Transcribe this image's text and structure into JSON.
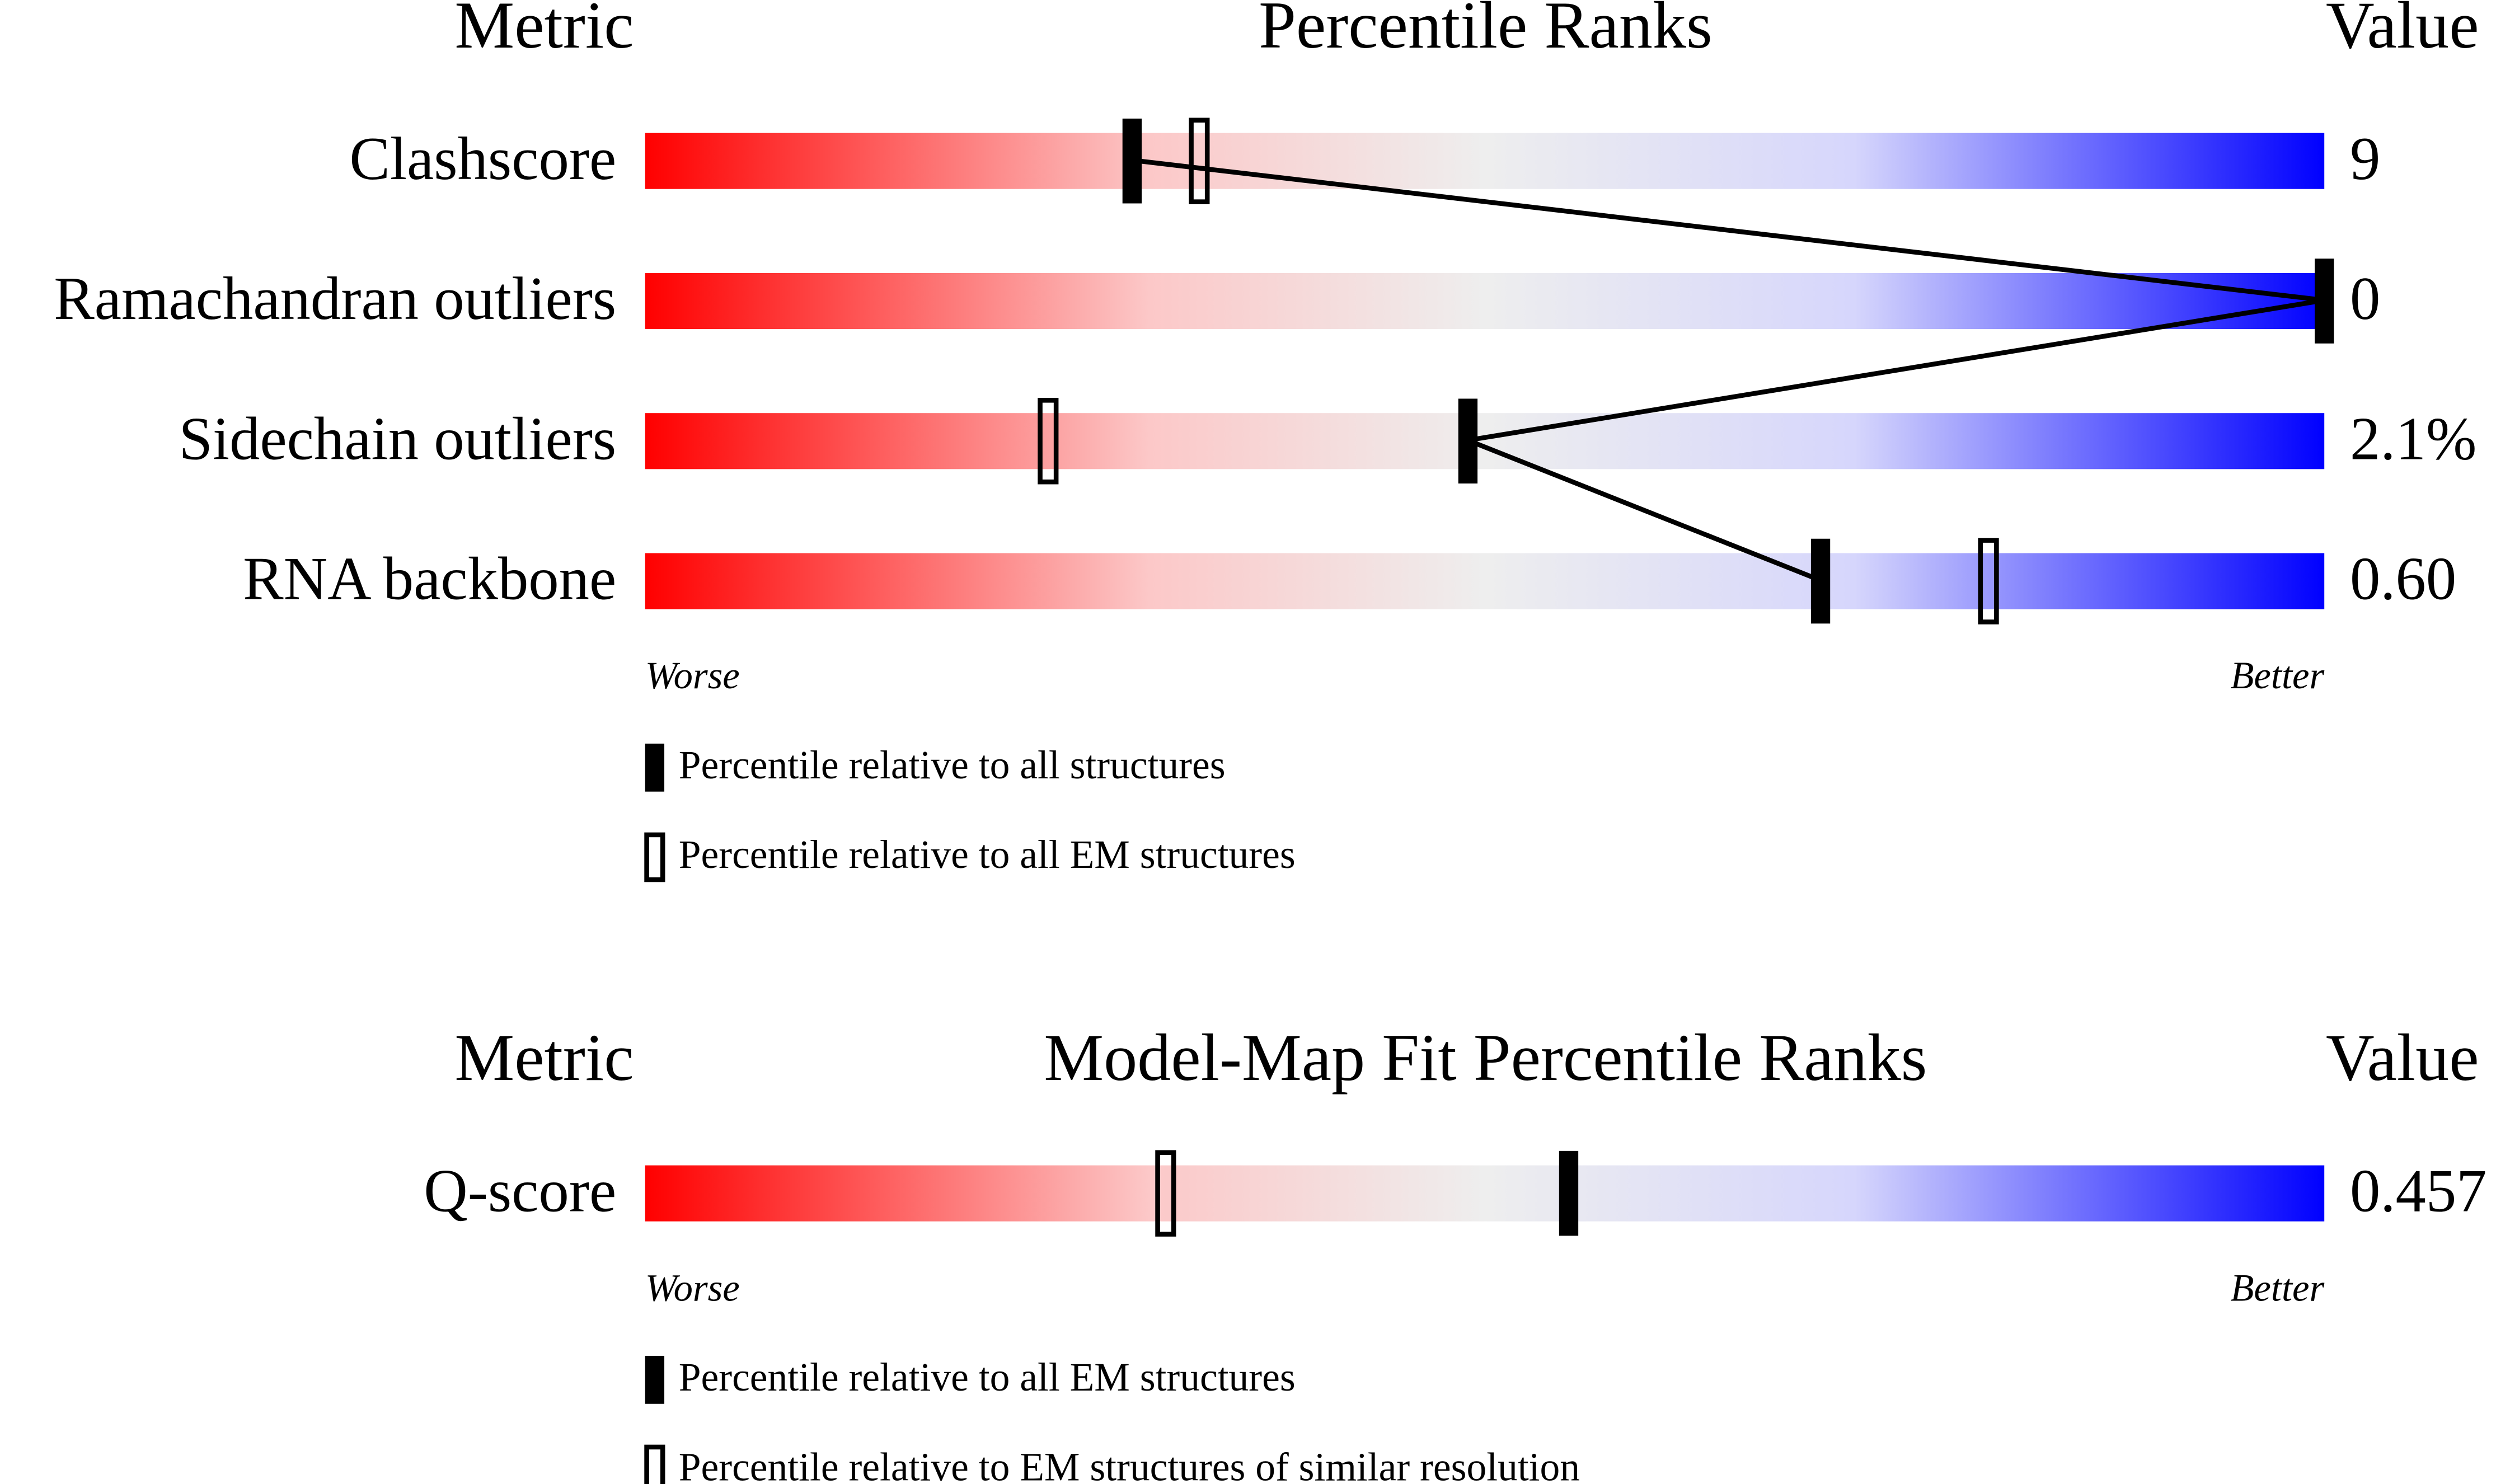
{
  "chart_data": [
    {
      "type": "slider",
      "title": "Percentile Ranks",
      "metric_header": "Metric",
      "value_header": "Value",
      "categories": [
        "Clashscore",
        "Ramachandran outliers",
        "Sidechain outliers",
        "RNA backbone"
      ],
      "metric_values": [
        9,
        0,
        {
          "value": 2.1,
          "label": "2.1%"
        },
        {
          "value": 0.6,
          "label": "0.60"
        }
      ],
      "xlim": [
        0,
        100
      ],
      "low_label": "Worse",
      "high_label": "Better",
      "connect": true,
      "series": [
        {
          "name": "Percentile relative to all structures",
          "color": "#000000",
          "filled": true,
          "values": [
            29,
            100,
            49,
            70
          ]
        },
        {
          "name": "Percentile relative to all EM structures",
          "color": "#000000",
          "filled": false,
          "values": [
            33,
            null,
            24,
            80
          ]
        }
      ]
    },
    {
      "type": "slider",
      "title": "Model-Map Fit Percentile Ranks",
      "metric_header": "Metric",
      "value_header": "Value",
      "categories": [
        "Q-score"
      ],
      "metric_values": [
        0.457
      ],
      "xlim": [
        0,
        100
      ],
      "low_label": "Worse",
      "high_label": "Better",
      "connect": false,
      "series": [
        {
          "name": "Percentile relative to all EM structures",
          "color": "#000000",
          "filled": true,
          "values": [
            55
          ]
        },
        {
          "name": "Percentile relative to EM structures of similar resolution",
          "color": "#000000",
          "filled": false,
          "values": [
            31
          ]
        }
      ]
    }
  ]
}
